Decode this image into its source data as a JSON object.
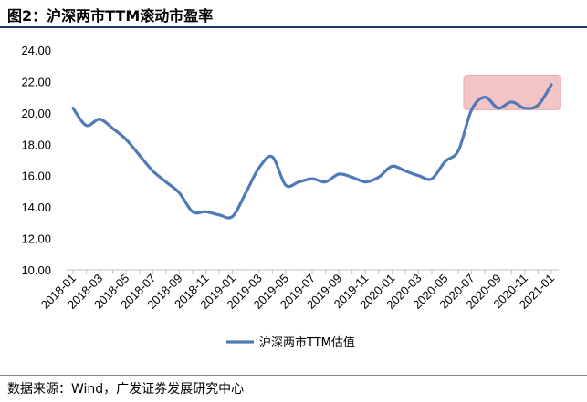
{
  "header": {
    "title": "图2：沪深两市TTM滚动市盈率"
  },
  "footer": {
    "source": "数据来源：Wind，广发证券发展研究中心"
  },
  "colors": {
    "line": "#4f7ab8",
    "highlight": "#f2c4c6",
    "highlight_border": "#e9aaae",
    "axis": "#bfbfbf",
    "rule": "#1f3a63"
  },
  "chart_data": {
    "type": "line",
    "title": "",
    "xlabel": "",
    "ylabel": "",
    "ylim": [
      10,
      24
    ],
    "y_ticks": [
      "10.00",
      "12.00",
      "14.00",
      "16.00",
      "18.00",
      "20.00",
      "22.00",
      "24.00"
    ],
    "x_tick_labels": [
      "2018-01",
      "2018-03",
      "2018-05",
      "2018-07",
      "2018-09",
      "2018-11",
      "2019-01",
      "2019-03",
      "2019-05",
      "2019-07",
      "2019-09",
      "2019-11",
      "2020-01",
      "2020-03",
      "2020-05",
      "2020-07",
      "2020-09",
      "2020-11",
      "2021-01"
    ],
    "grid": false,
    "legend": {
      "position": "bottom"
    },
    "highlight_region": {
      "x_from": "2020-06",
      "x_to": "2021-02",
      "y_from": 20.2,
      "y_to": 22.4
    },
    "series": [
      {
        "name": "沪深两市TTM估值",
        "x": [
          "2018-01",
          "2018-02",
          "2018-03",
          "2018-04",
          "2018-05",
          "2018-06",
          "2018-07",
          "2018-08",
          "2018-09",
          "2018-10",
          "2018-11",
          "2018-12",
          "2019-01",
          "2019-02",
          "2019-03",
          "2019-04",
          "2019-05",
          "2019-06",
          "2019-07",
          "2019-08",
          "2019-09",
          "2019-10",
          "2019-11",
          "2019-12",
          "2020-01",
          "2020-02",
          "2020-03",
          "2020-04",
          "2020-05",
          "2020-06",
          "2020-07",
          "2020-08",
          "2020-09",
          "2020-10",
          "2020-11",
          "2020-12",
          "2021-01"
        ],
        "values": [
          20.3,
          19.2,
          19.6,
          19.0,
          18.3,
          17.3,
          16.3,
          15.6,
          14.9,
          13.7,
          13.7,
          13.5,
          13.4,
          14.9,
          16.5,
          17.2,
          15.4,
          15.6,
          15.8,
          15.6,
          16.1,
          15.9,
          15.6,
          15.9,
          16.6,
          16.3,
          16.0,
          15.8,
          16.9,
          17.6,
          20.2,
          21.0,
          20.3,
          20.7,
          20.3,
          20.5,
          21.8
        ]
      }
    ]
  }
}
